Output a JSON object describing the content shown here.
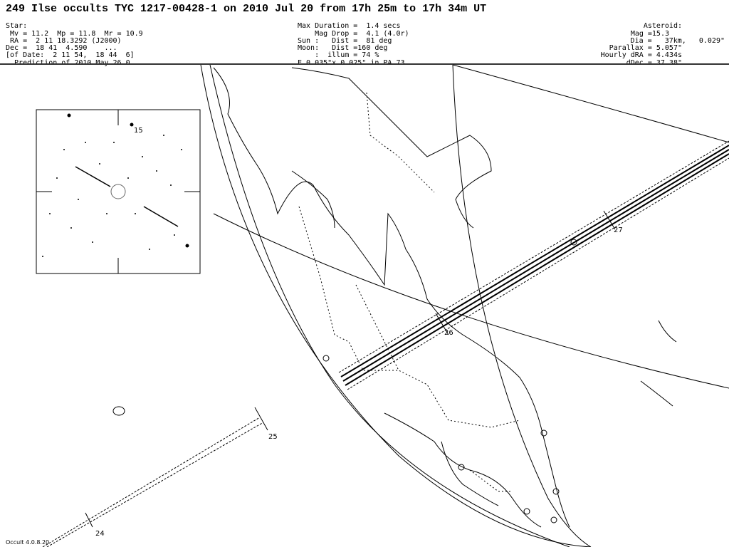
{
  "title": "249 Ilse occults TYC 1217-00428-1 on 2010 Jul 20 from 17h 25m to 17h 34m UT",
  "star": [
    "Star:",
    " Mv = 11.2  Mp = 11.8  Mr = 10.9",
    " RA =  2 11 18.3292 (J2000)",
    "Dec =  18 41  4.590    ...",
    "[of Date:  2 11 54,  18 44  6]",
    "  Prediction of 2010 May 26.0"
  ],
  "event": [
    "Max Duration =  1.4 secs",
    "    Mag Drop =  4.1 (4.0r)",
    "Sun :   Dist =  81 deg",
    "Moon:   Dist =160 deg",
    "    :  illum = 74 %",
    "E 0.035\"x 0.025\" in PA 73"
  ],
  "asteroid": [
    "Asteroid:",
    "Mag =15.3",
    "Dia =   37km,   0.029\"",
    "Parallax = 5.057\"",
    "Hourly dRA = 4.434s",
    "dDec = 37.38\""
  ],
  "map": {
    "time_labels": [
      "24",
      "25",
      "26",
      "27"
    ],
    "inset_star_label": "15"
  },
  "footer": "Occult 4.0.8.20"
}
